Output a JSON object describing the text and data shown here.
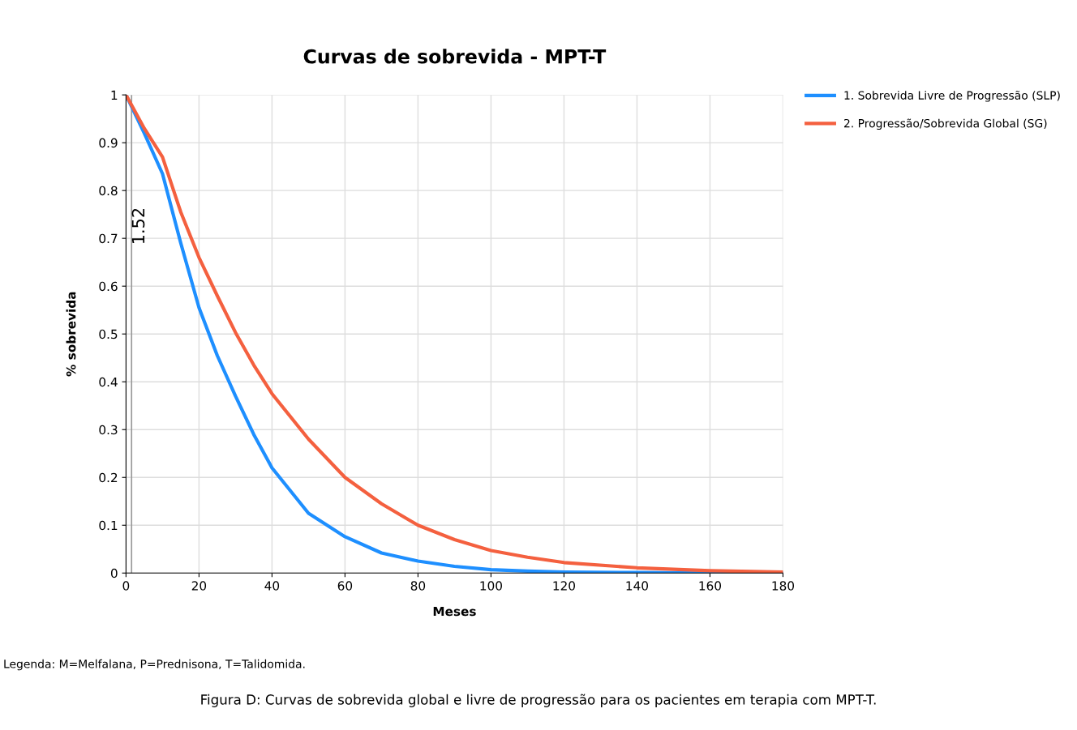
{
  "chart_data": {
    "type": "line",
    "title": "Curvas de sobrevida - MPT-T",
    "xlabel": "Meses",
    "ylabel": "% sobrevida",
    "x": [
      0,
      5,
      10,
      15,
      20,
      25,
      30,
      35,
      40,
      50,
      60,
      70,
      80,
      90,
      100,
      110,
      120,
      140,
      160,
      180
    ],
    "series": [
      {
        "name": "1. Sobrevida Livre de Progressão (SLP)",
        "color": "#1e8fff",
        "values": [
          1,
          0.92,
          0.835,
          0.69,
          0.555,
          0.455,
          0.37,
          0.29,
          0.22,
          0.125,
          0.076,
          0.042,
          0.025,
          0.014,
          0.007,
          0.004,
          0.002,
          0.001,
          0,
          0
        ]
      },
      {
        "name": "2. Progressão/Sobrevida Global (SG)",
        "color": "#f4603f",
        "values": [
          1,
          0.93,
          0.87,
          0.755,
          0.66,
          0.58,
          0.503,
          0.435,
          0.375,
          0.28,
          0.2,
          0.145,
          0.1,
          0.07,
          0.047,
          0.033,
          0.022,
          0.011,
          0.005,
          0.002
        ]
      }
    ],
    "xlim": [
      0,
      180
    ],
    "xticks": [
      0,
      20,
      40,
      60,
      80,
      100,
      120,
      140,
      160,
      180
    ],
    "ylim": [
      0,
      1
    ],
    "yticks": [
      0,
      0.1,
      0.2,
      0.3,
      0.4,
      0.5,
      0.6,
      0.7,
      0.8,
      0.9,
      1
    ],
    "ref_lines": [
      {
        "axis": "x",
        "value": 1.52,
        "label": "1.52",
        "color": "#999999"
      }
    ],
    "grid": true,
    "legend": "top right",
    "marker": "none",
    "line_style": "solid",
    "annotations": [
      "Legenda: M=Melfalana, P=Prednisona, T=Talidomida.",
      "Figura D: Curvas de sobrevida global e livre de progressão para os pacientes em terapia com MPT-T."
    ]
  }
}
